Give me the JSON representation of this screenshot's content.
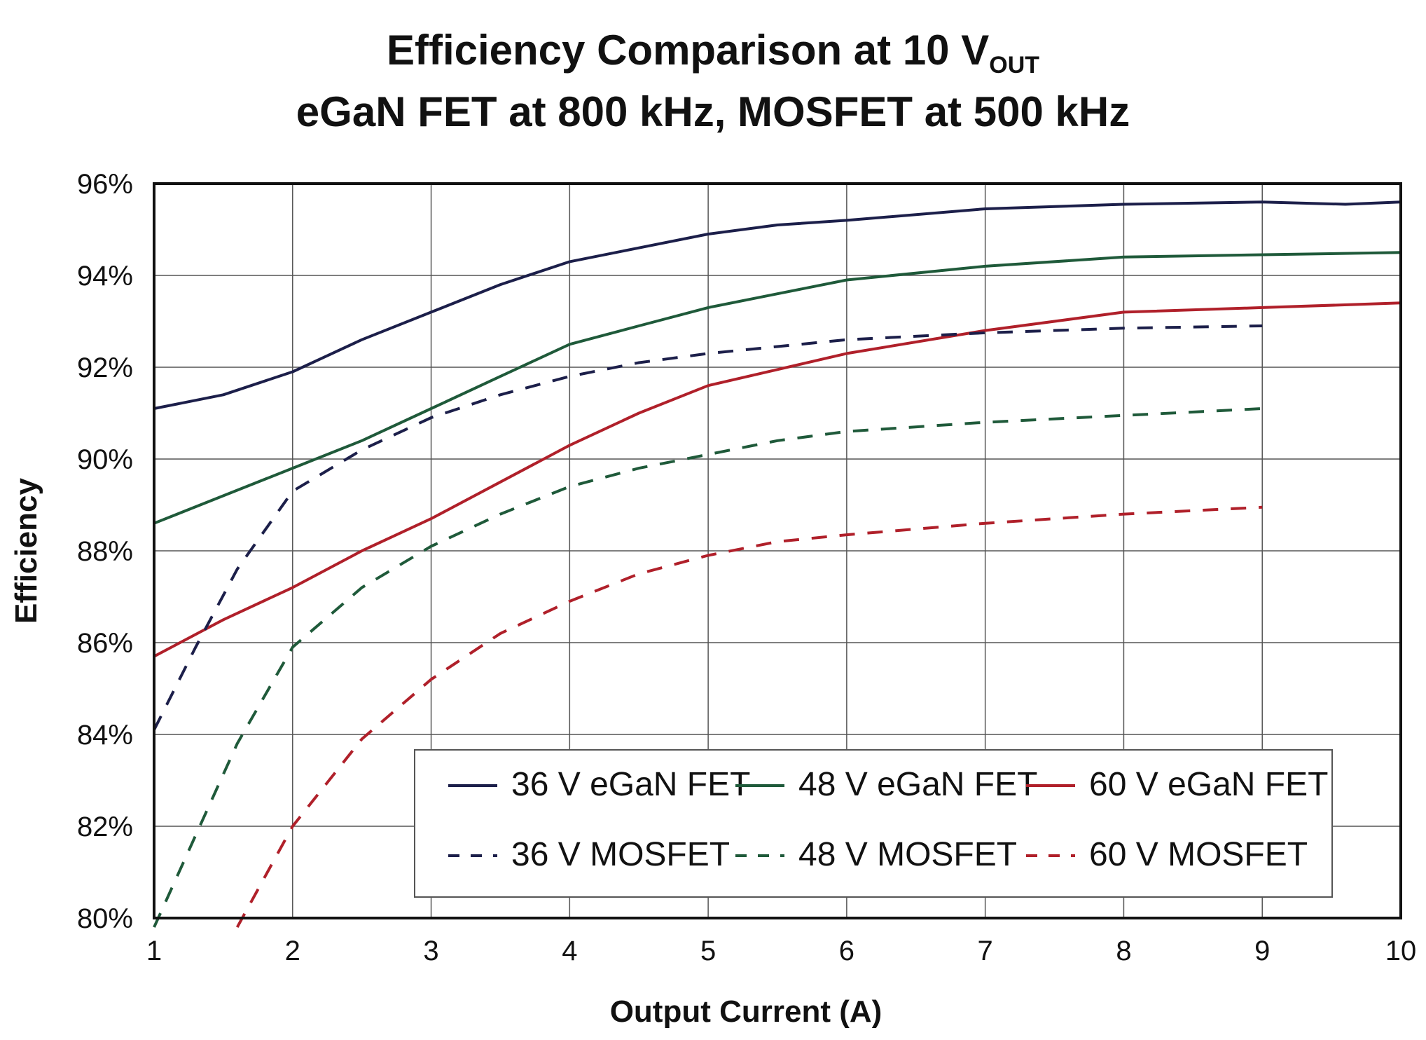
{
  "chart_data": {
    "type": "line",
    "title": {
      "line1_main": "Efficiency Comparison at 10 V",
      "line1_subscript": "OUT",
      "line2": "eGaN FET at 800 kHz, MOSFET at 500 kHz"
    },
    "xlabel": "Output Current (A)",
    "ylabel": "Efficiency",
    "xlim": [
      1,
      10
    ],
    "ylim": [
      80,
      96
    ],
    "x_ticks": [
      "1",
      "2",
      "3",
      "4",
      "5",
      "6",
      "7",
      "8",
      "9",
      "10"
    ],
    "y_ticks": [
      "80%",
      "82%",
      "84%",
      "86%",
      "88%",
      "90%",
      "92%",
      "94%",
      "96%"
    ],
    "grid": true,
    "legend_position": "lower-right",
    "series": [
      {
        "name": "36 V eGaN FET",
        "color": "#1c1f4a",
        "dash": "solid",
        "x": [
          1,
          1.5,
          2,
          2.5,
          3,
          3.5,
          4,
          4.5,
          5,
          5.5,
          6,
          7,
          8,
          9,
          9.6,
          10
        ],
        "y": [
          91.1,
          91.4,
          91.9,
          92.6,
          93.2,
          93.8,
          94.3,
          94.6,
          94.9,
          95.1,
          95.2,
          95.45,
          95.55,
          95.6,
          95.55,
          95.6
        ]
      },
      {
        "name": "48 V eGaN FET",
        "color": "#1f5a3a",
        "dash": "solid",
        "x": [
          1,
          1.5,
          2,
          2.5,
          3,
          3.5,
          4,
          4.5,
          5,
          5.5,
          6,
          7,
          8,
          9,
          10
        ],
        "y": [
          88.6,
          89.2,
          89.8,
          90.4,
          91.1,
          91.8,
          92.5,
          92.9,
          93.3,
          93.6,
          93.9,
          94.2,
          94.4,
          94.45,
          94.5
        ]
      },
      {
        "name": "60 V eGaN FET",
        "color": "#b0202a",
        "dash": "solid",
        "x": [
          1,
          1.5,
          2,
          2.5,
          3,
          3.5,
          4,
          4.5,
          5,
          5.5,
          6,
          7,
          8,
          9,
          10
        ],
        "y": [
          85.7,
          86.5,
          87.2,
          88.0,
          88.7,
          89.5,
          90.3,
          91.0,
          91.6,
          91.95,
          92.3,
          92.8,
          93.2,
          93.3,
          93.4
        ]
      },
      {
        "name": "36 V MOSFET",
        "color": "#1c1f4a",
        "dash": "dashed",
        "x": [
          1,
          1.3,
          1.6,
          2,
          2.5,
          3,
          3.5,
          4,
          4.5,
          5,
          5.5,
          6,
          7,
          8,
          9
        ],
        "y": [
          84.1,
          85.9,
          87.6,
          89.3,
          90.2,
          90.9,
          91.4,
          91.8,
          92.1,
          92.3,
          92.45,
          92.6,
          92.75,
          92.85,
          92.9
        ]
      },
      {
        "name": "48 V MOSFET",
        "color": "#1f5a3a",
        "dash": "dashed",
        "x": [
          1,
          1.3,
          1.6,
          2,
          2.5,
          3,
          3.5,
          4,
          4.5,
          5,
          5.5,
          6,
          7,
          8,
          9
        ],
        "y": [
          79.8,
          81.8,
          83.8,
          85.9,
          87.2,
          88.1,
          88.8,
          89.4,
          89.8,
          90.1,
          90.4,
          90.6,
          90.8,
          90.95,
          91.1
        ]
      },
      {
        "name": "60 V MOSFET",
        "color": "#b0202a",
        "dash": "dashed",
        "x": [
          1.6,
          2,
          2.5,
          3,
          3.5,
          4,
          4.5,
          5,
          5.5,
          6,
          7,
          8,
          9
        ],
        "y": [
          79.8,
          82.0,
          83.9,
          85.2,
          86.2,
          86.9,
          87.5,
          87.9,
          88.2,
          88.35,
          88.6,
          88.8,
          88.95
        ]
      }
    ]
  }
}
